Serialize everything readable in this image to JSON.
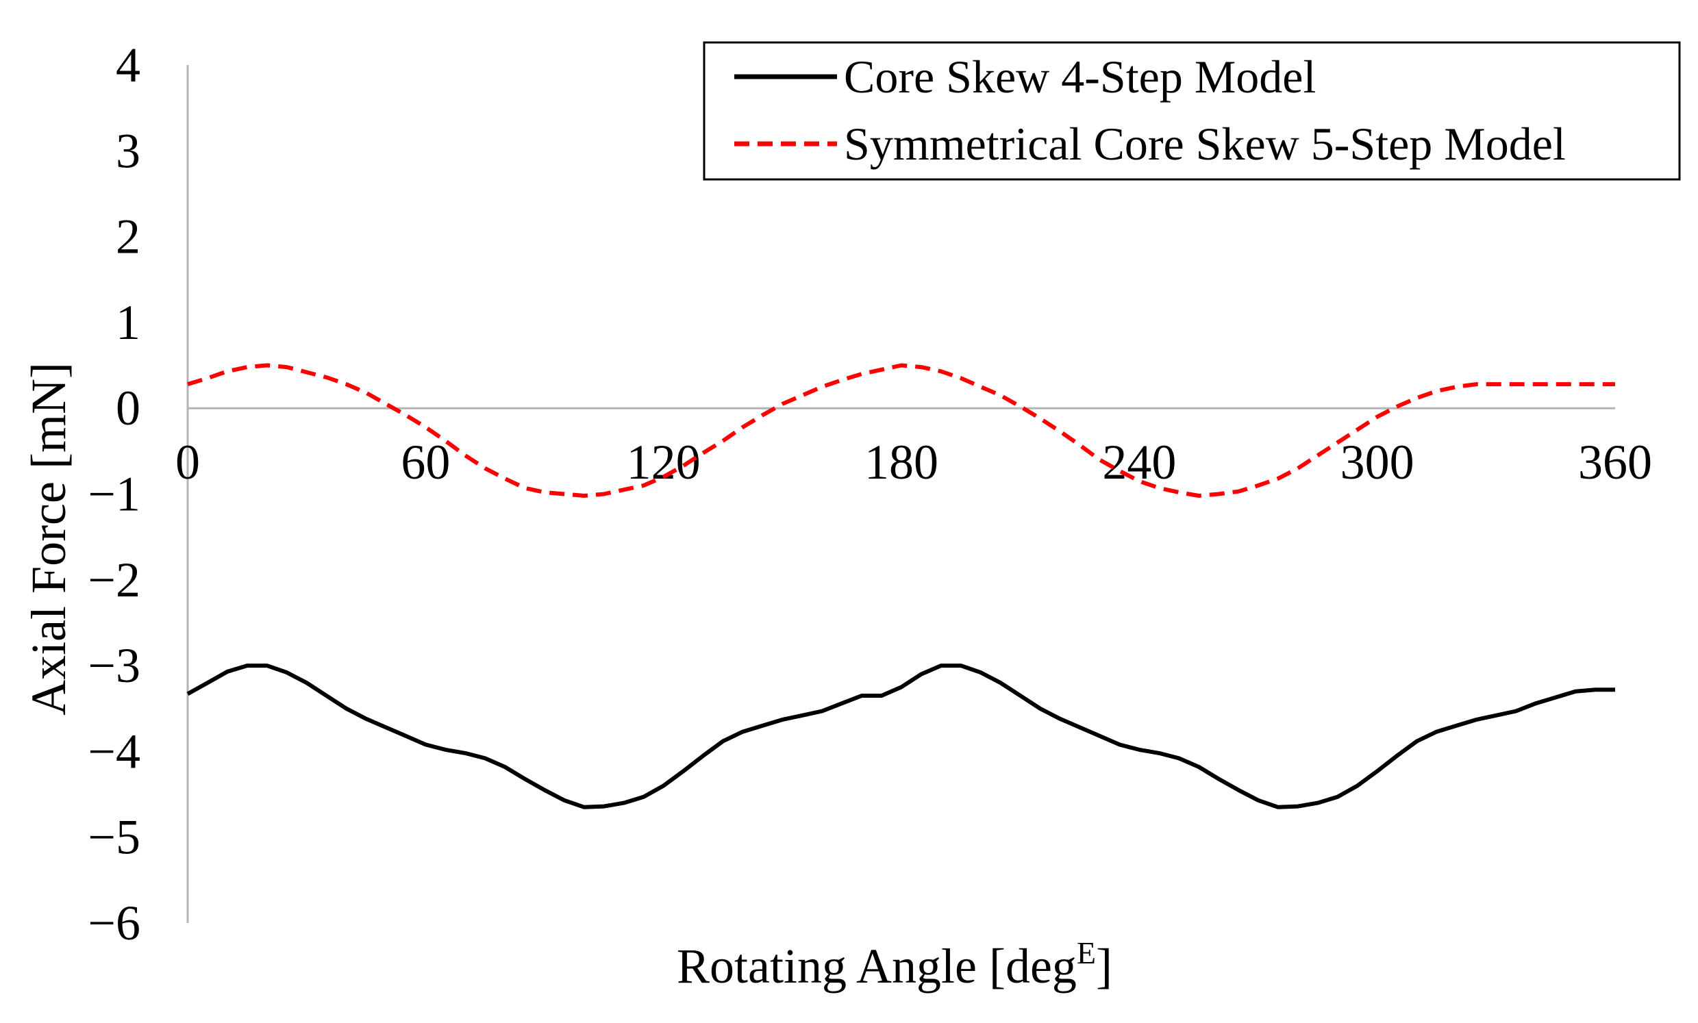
{
  "chart_data": {
    "type": "line",
    "title": "",
    "xlabel": "Rotating Angle [deg",
    "xlabel_superscript": "E",
    "xlabel_suffix": "]",
    "ylabel": "Axial Force [mN]",
    "xlim": [
      0,
      360
    ],
    "ylim": [
      -6,
      4
    ],
    "x_ticks": [
      "0",
      "60",
      "120",
      "180",
      "240",
      "300",
      "360"
    ],
    "x_tick_values": [
      0,
      60,
      120,
      180,
      240,
      300,
      360
    ],
    "y_ticks": [
      "4",
      "3",
      "2",
      "1",
      "0",
      "−1",
      "−2",
      "−3",
      "−4",
      "−5",
      "−6"
    ],
    "y_tick_values": [
      4,
      3,
      2,
      1,
      0,
      -1,
      -2,
      -3,
      -4,
      -5,
      -6
    ],
    "grid": false,
    "legend_position": "top-right",
    "series": [
      {
        "name": "Core Skew 4-Step Model",
        "color": "#000000",
        "style": "solid",
        "x": [
          0,
          5,
          10,
          15,
          20,
          25,
          30,
          35,
          40,
          45,
          50,
          55,
          60,
          65,
          70,
          75,
          80,
          85,
          90,
          95,
          100,
          105,
          110,
          115,
          120,
          125,
          130,
          135,
          140,
          145,
          150,
          155,
          160,
          165,
          170,
          175,
          180,
          185,
          190,
          195,
          200,
          205,
          210,
          215,
          220,
          225,
          230,
          235,
          240,
          245,
          250,
          255,
          260,
          265,
          270,
          275,
          280,
          285,
          290,
          295,
          300,
          305,
          310,
          315,
          320,
          325,
          330,
          335,
          340,
          345,
          350,
          355,
          360
        ],
        "y": [
          -3.33,
          -3.2,
          -3.07,
          -3.0,
          -3.0,
          -3.08,
          -3.2,
          -3.35,
          -3.5,
          -3.62,
          -3.72,
          -3.82,
          -3.92,
          -3.98,
          -4.02,
          -4.08,
          -4.18,
          -4.32,
          -4.45,
          -4.57,
          -4.65,
          -4.64,
          -4.6,
          -4.53,
          -4.4,
          -4.23,
          -4.05,
          -3.88,
          -3.77,
          -3.7,
          -3.63,
          -3.58,
          -3.53,
          -3.44,
          -3.35,
          -3.35,
          -3.25,
          -3.1,
          -3.0,
          -3.0,
          -3.08,
          -3.2,
          -3.35,
          -3.5,
          -3.62,
          -3.72,
          -3.82,
          -3.92,
          -3.98,
          -4.02,
          -4.08,
          -4.18,
          -4.32,
          -4.45,
          -4.57,
          -4.65,
          -4.64,
          -4.6,
          -4.53,
          -4.4,
          -4.23,
          -4.05,
          -3.88,
          -3.77,
          -3.7,
          -3.63,
          -3.58,
          -3.53,
          -3.44,
          -3.37,
          -3.3,
          -3.28,
          -3.28
        ]
      },
      {
        "name": "Symmetrical Core Skew 5-Step Model",
        "color": "#ff0000",
        "style": "dashed",
        "x": [
          0,
          5,
          10,
          15,
          20,
          25,
          30,
          35,
          40,
          45,
          50,
          55,
          60,
          65,
          70,
          75,
          80,
          85,
          90,
          95,
          100,
          105,
          110,
          115,
          120,
          125,
          130,
          135,
          140,
          145,
          150,
          155,
          160,
          165,
          170,
          175,
          180,
          185,
          190,
          195,
          200,
          205,
          210,
          215,
          220,
          225,
          230,
          235,
          240,
          245,
          250,
          255,
          260,
          265,
          270,
          275,
          280,
          285,
          290,
          295,
          300,
          305,
          310,
          315,
          320,
          325,
          330,
          335,
          340,
          345,
          350,
          355,
          360
        ],
        "y": [
          0.28,
          0.35,
          0.43,
          0.48,
          0.5,
          0.48,
          0.42,
          0.36,
          0.28,
          0.18,
          0.05,
          -0.08,
          -0.22,
          -0.38,
          -0.55,
          -0.7,
          -0.82,
          -0.93,
          -0.98,
          -1.0,
          -1.02,
          -1.0,
          -0.95,
          -0.9,
          -0.8,
          -0.67,
          -0.52,
          -0.38,
          -0.22,
          -0.08,
          0.05,
          0.15,
          0.25,
          0.33,
          0.4,
          0.45,
          0.5,
          0.48,
          0.43,
          0.35,
          0.25,
          0.15,
          0.02,
          -0.12,
          -0.27,
          -0.43,
          -0.6,
          -0.73,
          -0.85,
          -0.93,
          -0.98,
          -1.02,
          -1.0,
          -0.97,
          -0.9,
          -0.82,
          -0.7,
          -0.55,
          -0.4,
          -0.25,
          -0.1,
          0.02,
          0.12,
          0.2,
          0.25,
          0.28,
          0.28,
          0.28,
          0.28,
          0.28,
          0.28,
          0.28,
          0.28
        ]
      }
    ]
  }
}
